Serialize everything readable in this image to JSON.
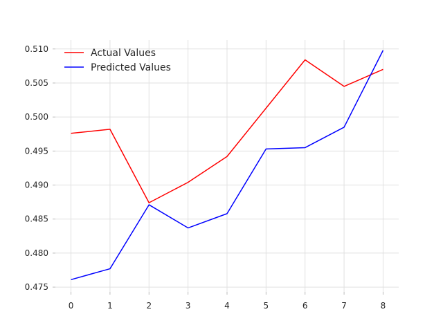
{
  "chart_data": {
    "type": "line",
    "title": "",
    "xlabel": "",
    "ylabel": "",
    "x": [
      0,
      1,
      2,
      3,
      4,
      5,
      6,
      7,
      8
    ],
    "xticks": [
      "0",
      "1",
      "2",
      "3",
      "4",
      "5",
      "6",
      "7",
      "8"
    ],
    "yticks": [
      "0.475",
      "0.480",
      "0.485",
      "0.490",
      "0.495",
      "0.500",
      "0.505",
      "0.510"
    ],
    "ytick_values": [
      0.475,
      0.48,
      0.485,
      0.49,
      0.495,
      0.5,
      0.505,
      0.51
    ],
    "xlim": [
      -0.4,
      8.4
    ],
    "ylim": [
      0.4743,
      0.5113
    ],
    "grid": true,
    "legend_position": "top-left",
    "series": [
      {
        "name": "Actual Values",
        "color": "#ff0000",
        "values": [
          0.4976,
          0.4982,
          0.4874,
          0.4904,
          0.4942,
          0.5013,
          0.5084,
          0.5045,
          0.507
        ]
      },
      {
        "name": "Predicted Values",
        "color": "#0000ff",
        "values": [
          0.4761,
          0.4777,
          0.4871,
          0.4837,
          0.4858,
          0.4953,
          0.4955,
          0.4985,
          0.5098
        ]
      }
    ]
  }
}
